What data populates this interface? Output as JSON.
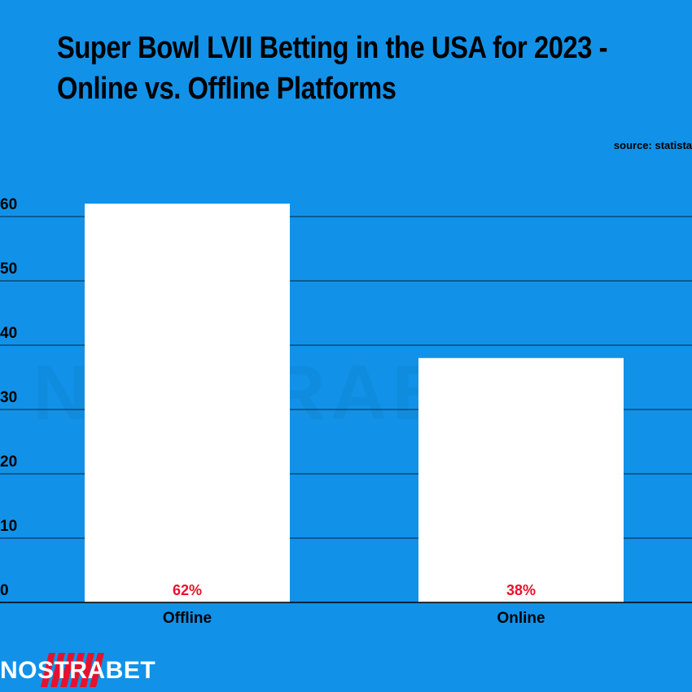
{
  "title": "Super Bowl LVII Betting in the USA for 2023 - Online vs. Offline Platforms",
  "source": "source: statista",
  "logo_text": "NOSTRABET",
  "colors": {
    "background": "#1192e8",
    "bar": "#ffffff",
    "data_label": "#e8112d",
    "grid": "#000000"
  },
  "chart_data": {
    "type": "bar",
    "categories": [
      "Offline",
      "Online"
    ],
    "values": [
      62,
      38
    ],
    "data_labels": [
      "62%",
      "38%"
    ],
    "title": "Super Bowl LVII Betting in the USA for 2023 - Online vs. Offline Platforms",
    "xlabel": "",
    "ylabel": "",
    "ylim": [
      0,
      60
    ],
    "yticks": [
      0,
      10,
      20,
      30,
      40,
      50,
      60
    ],
    "grid": true
  }
}
